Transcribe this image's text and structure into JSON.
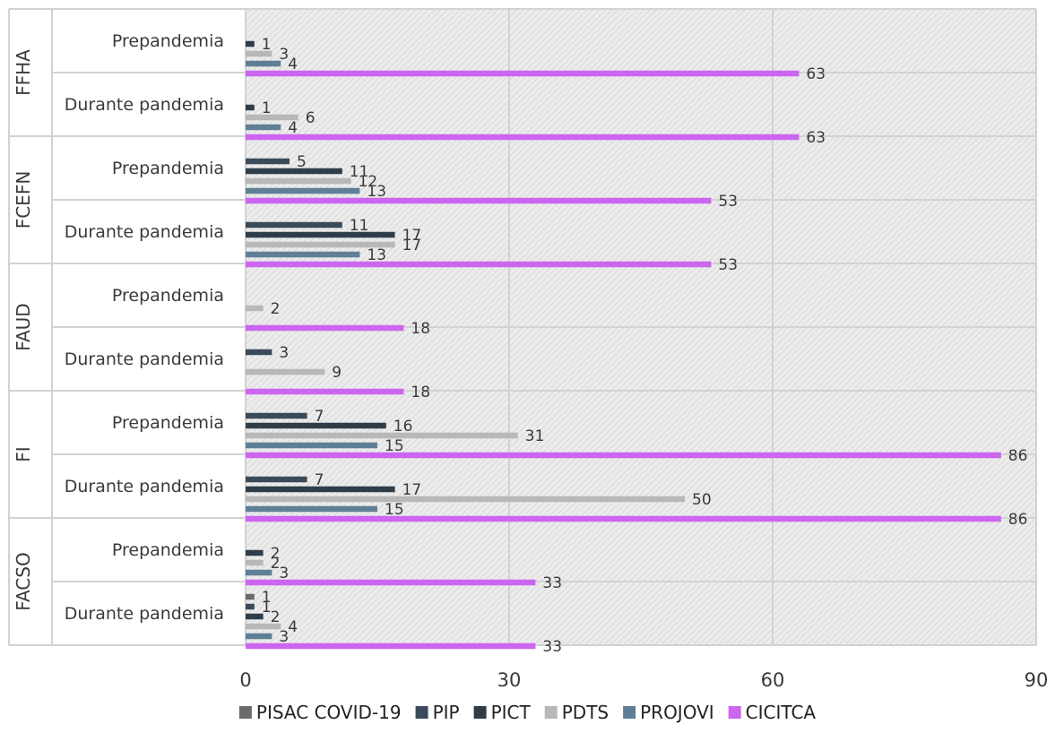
{
  "chart_data": {
    "type": "bar",
    "orientation": "horizontal",
    "title": "",
    "xlabel": "",
    "ylabel": "",
    "xlim": [
      0,
      90
    ],
    "x_ticks": [
      0,
      30,
      60,
      90
    ],
    "grid": true,
    "legend_position": "bottom",
    "groups": [
      {
        "name": "FFHA",
        "categories": [
          {
            "label": "Prepandemia",
            "values": {
              "PISAC COVID-19": null,
              "PIP": null,
              "PICT": 1,
              "PDTS": 3,
              "PROJOVI": 4,
              "CICITCA": 63
            }
          },
          {
            "label": "Durante pandemia",
            "values": {
              "PISAC COVID-19": null,
              "PIP": null,
              "PICT": 1,
              "PDTS": 6,
              "PROJOVI": 4,
              "CICITCA": 63
            }
          }
        ]
      },
      {
        "name": "FCEFN",
        "categories": [
          {
            "label": "Prepandemia",
            "values": {
              "PISAC COVID-19": null,
              "PIP": 5,
              "PICT": 11,
              "PDTS": 12,
              "PROJOVI": 13,
              "CICITCA": 53
            }
          },
          {
            "label": "Durante pandemia",
            "values": {
              "PISAC COVID-19": null,
              "PIP": 11,
              "PICT": 17,
              "PDTS": 17,
              "PROJOVI": 13,
              "CICITCA": 53
            }
          }
        ]
      },
      {
        "name": "FAUD",
        "categories": [
          {
            "label": "Prepandemia",
            "values": {
              "PISAC COVID-19": null,
              "PIP": null,
              "PICT": null,
              "PDTS": 2,
              "PROJOVI": null,
              "CICITCA": 18
            }
          },
          {
            "label": "Durante pandemia",
            "values": {
              "PISAC COVID-19": null,
              "PIP": 3,
              "PICT": null,
              "PDTS": 9,
              "PROJOVI": null,
              "CICITCA": 18
            }
          }
        ]
      },
      {
        "name": "FI",
        "categories": [
          {
            "label": "Prepandemia",
            "values": {
              "PISAC COVID-19": null,
              "PIP": 7,
              "PICT": 16,
              "PDTS": 31,
              "PROJOVI": 15,
              "CICITCA": 86
            }
          },
          {
            "label": "Durante pandemia",
            "values": {
              "PISAC COVID-19": null,
              "PIP": 7,
              "PICT": 17,
              "PDTS": 50,
              "PROJOVI": 15,
              "CICITCA": 86
            }
          }
        ]
      },
      {
        "name": "FACSO",
        "categories": [
          {
            "label": "Prepandemia",
            "values": {
              "PISAC COVID-19": null,
              "PIP": null,
              "PICT": 2,
              "PDTS": 2,
              "PROJOVI": 3,
              "CICITCA": 33
            }
          },
          {
            "label": "Durante pandemia",
            "values": {
              "PISAC COVID-19": 1,
              "PIP": 1,
              "PICT": 2,
              "PDTS": 4,
              "PROJOVI": 3,
              "CICITCA": 33
            }
          }
        ]
      }
    ],
    "series": [
      {
        "name": "PISAC COVID-19",
        "color": "#6b6b6e"
      },
      {
        "name": "PIP",
        "color": "#3b4a59"
      },
      {
        "name": "PICT",
        "color": "#2f3d49"
      },
      {
        "name": "PDTS",
        "color": "#b8b8b8"
      },
      {
        "name": "PROJOVI",
        "color": "#5f7f96"
      },
      {
        "name": "CICITCA",
        "color": "#cc66f0"
      }
    ],
    "styles": {
      "plot_background": "#ececec",
      "hatch_color": "#d8d8d8",
      "grid_color": "#d2d2d2",
      "text_color": "#3a3a3a"
    }
  }
}
